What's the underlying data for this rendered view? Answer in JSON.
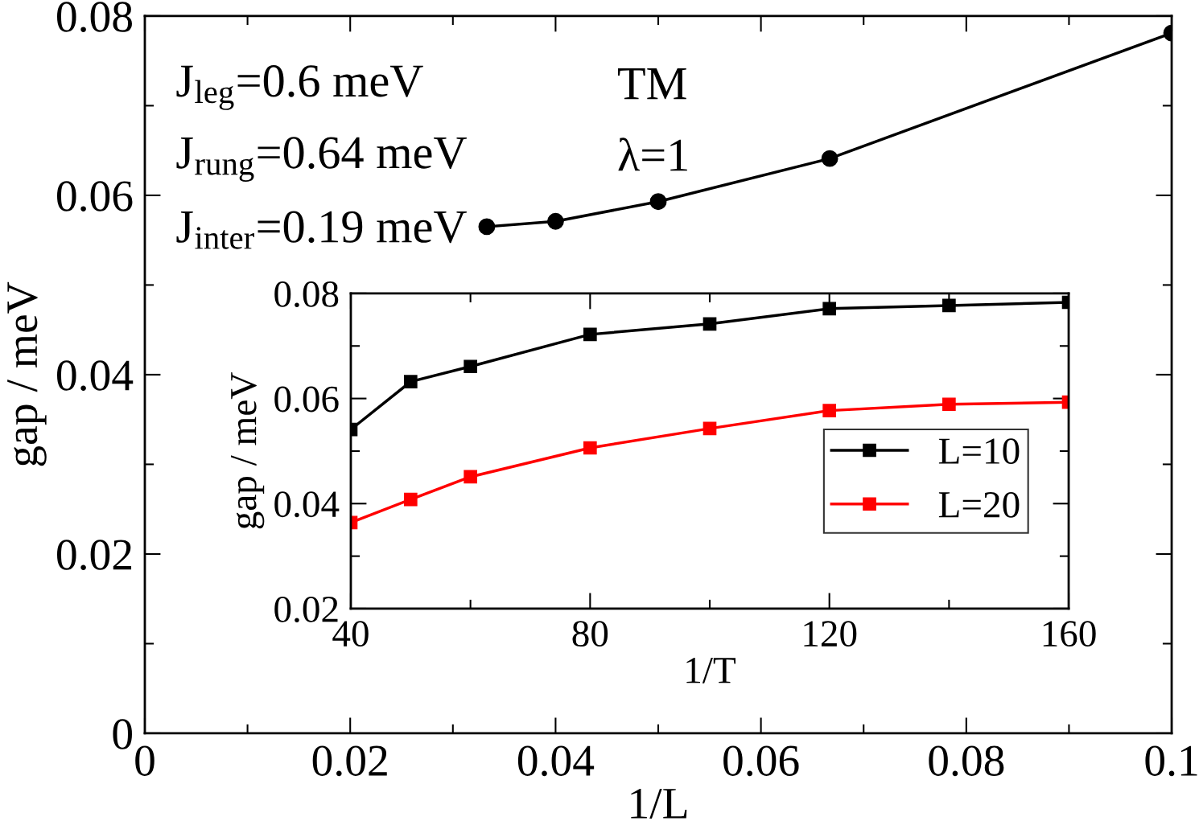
{
  "chart_data": [
    {
      "type": "line",
      "xlabel": "1/L",
      "ylabel": "gap / meV",
      "x": [
        0.0333,
        0.04,
        0.05,
        0.0667,
        0.1
      ],
      "series": [
        {
          "color": "#000000",
          "values": [
            0.0565,
            0.0571,
            0.0593,
            0.0641,
            0.0781
          ]
        }
      ],
      "xlim": [
        0,
        0.1
      ],
      "ylim": [
        0,
        0.08
      ],
      "xticks": [
        0,
        {
          "value": 0.01,
          "label": null
        },
        0.02,
        {
          "value": 0.03,
          "label": null
        },
        0.04,
        {
          "value": 0.05,
          "label": null
        },
        0.06,
        {
          "value": 0.07,
          "label": null
        },
        0.08,
        {
          "value": 0.09,
          "label": null
        },
        0.1
      ],
      "yticks": [
        0,
        {
          "value": 0.01,
          "label": null
        },
        0.02,
        {
          "value": 0.03,
          "label": null
        },
        0.04,
        {
          "value": 0.05,
          "label": null
        },
        0.06,
        {
          "value": 0.07,
          "label": null
        },
        0.08
      ],
      "marker": "circle",
      "line_style": "solid",
      "grid": false,
      "legend": false,
      "annotations": [
        "J$_{leg}$=0.6 meV",
        "J$_{rung}$=0.64 meV",
        "J$_{inter}$=0.19 meV",
        "TM",
        "λ=1"
      ]
    },
    {
      "type": "line",
      "xlabel": "1/T",
      "ylabel": "gap / meV",
      "x": [
        40,
        50,
        60,
        80,
        100,
        120,
        140,
        160
      ],
      "series": [
        {
          "name": "L=10",
          "color": "#000000",
          "values": [
            0.0541,
            0.0632,
            0.0661,
            0.0722,
            0.0742,
            0.0771,
            0.0777,
            0.0783
          ]
        },
        {
          "name": "L=20",
          "color": "#ff0000",
          "values": [
            0.0364,
            0.0408,
            0.0451,
            0.0506,
            0.0543,
            0.0577,
            0.0589,
            0.0593
          ]
        }
      ],
      "xlim": [
        40,
        160
      ],
      "ylim": [
        0.02,
        0.08
      ],
      "xticks": [
        40,
        {
          "value": 60,
          "label": null
        },
        80,
        {
          "value": 100,
          "label": null
        },
        120,
        {
          "value": 140,
          "label": null
        },
        160
      ],
      "yticks": [
        0.02,
        {
          "value": 0.03,
          "label": null
        },
        0.04,
        {
          "value": 0.05,
          "label": null
        },
        0.06,
        {
          "value": 0.07,
          "label": null
        },
        0.08
      ],
      "marker": "square",
      "line_style": "solid",
      "grid": false,
      "legend": "bottom right"
    }
  ]
}
